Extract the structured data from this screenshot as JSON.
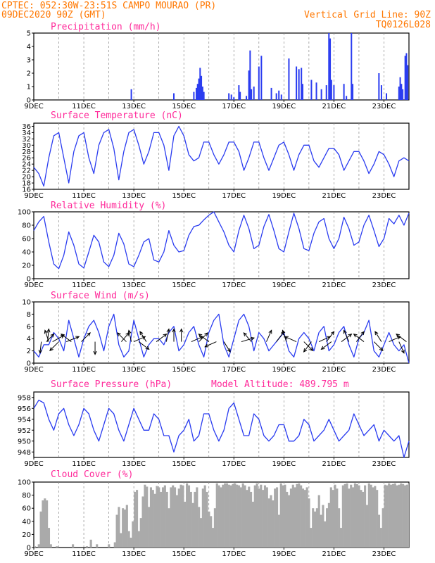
{
  "header": {
    "line1_left": "CPTEC:  052:30W-23:51S  CAMPO MOURAO (PR)",
    "line2_left": "09DEC2020 90Z (GMT)",
    "line2_right": "Vertical Grid Line: 90Z",
    "line3_right": "TQ0126L028"
  },
  "colors": {
    "header": "#ff7700",
    "title": "#ff2a9a",
    "series": "#2a3cf0",
    "cloud": "#aaaaaa"
  },
  "x_axis": {
    "start": "09DEC",
    "end": "24DEC",
    "ticks": [
      "9DEC",
      "11DEC",
      "13DEC",
      "15DEC",
      "17DEC",
      "19DEC",
      "21DEC",
      "23DEC"
    ],
    "tick_days": [
      9,
      11,
      13,
      15,
      17,
      19,
      21,
      23
    ],
    "grid_days": [
      10,
      11,
      12,
      13,
      14,
      15,
      16,
      17,
      18,
      19,
      20,
      21,
      22,
      23
    ]
  },
  "chart_data": [
    {
      "id": "precipitation",
      "type": "bar",
      "title": "Precipitation (mm/h)",
      "ylim": [
        0,
        5
      ],
      "yticks": [
        0,
        1,
        2,
        3,
        4,
        5
      ],
      "bars": [
        [
          12.9,
          0.8
        ],
        [
          14.6,
          0.5
        ],
        [
          15.4,
          0.6
        ],
        [
          15.5,
          0.9
        ],
        [
          15.55,
          1.2
        ],
        [
          15.6,
          1.6
        ],
        [
          15.65,
          2.4
        ],
        [
          15.7,
          1.8
        ],
        [
          15.75,
          1.0
        ],
        [
          15.8,
          0.6
        ],
        [
          16.8,
          0.5
        ],
        [
          16.9,
          0.4
        ],
        [
          17.0,
          0.2
        ],
        [
          17.2,
          1.1
        ],
        [
          17.25,
          0.6
        ],
        [
          17.5,
          0.3
        ],
        [
          17.6,
          2.2
        ],
        [
          17.65,
          3.7
        ],
        [
          17.7,
          0.8
        ],
        [
          17.8,
          1.0
        ],
        [
          18.0,
          2.5
        ],
        [
          18.1,
          3.3
        ],
        [
          18.5,
          0.9
        ],
        [
          18.7,
          0.5
        ],
        [
          18.8,
          0.7
        ],
        [
          18.9,
          0.4
        ],
        [
          19.2,
          3.1
        ],
        [
          19.5,
          2.5
        ],
        [
          19.6,
          2.3
        ],
        [
          19.7,
          2.4
        ],
        [
          19.75,
          1.2
        ],
        [
          20.1,
          1.5
        ],
        [
          20.3,
          1.3
        ],
        [
          20.5,
          0.8
        ],
        [
          20.7,
          1.1
        ],
        [
          20.8,
          5.0
        ],
        [
          20.85,
          4.6
        ],
        [
          20.9,
          1.5
        ],
        [
          21.0,
          1.1
        ],
        [
          21.4,
          1.2
        ],
        [
          21.5,
          0.3
        ],
        [
          21.7,
          5.0
        ],
        [
          21.75,
          1.2
        ],
        [
          22.8,
          2.0
        ],
        [
          22.9,
          1.1
        ],
        [
          23.1,
          0.5
        ],
        [
          23.6,
          1.0
        ],
        [
          23.65,
          1.7
        ],
        [
          23.7,
          1.2
        ],
        [
          23.75,
          0.8
        ],
        [
          23.85,
          3.3
        ],
        [
          23.9,
          3.5
        ],
        [
          23.95,
          2.6
        ]
      ]
    },
    {
      "id": "temperature",
      "type": "line",
      "title": "Surface Temperature (nC)",
      "ylim": [
        16,
        37
      ],
      "yticks": [
        16,
        18,
        20,
        22,
        24,
        26,
        28,
        30,
        32,
        34,
        36
      ],
      "x": [
        9.0,
        9.2,
        9.4,
        9.6,
        9.8,
        10.0,
        10.2,
        10.4,
        10.6,
        10.8,
        11.0,
        11.2,
        11.4,
        11.6,
        11.8,
        12.0,
        12.2,
        12.4,
        12.6,
        12.8,
        13.0,
        13.2,
        13.4,
        13.6,
        13.8,
        14.0,
        14.2,
        14.4,
        14.6,
        14.8,
        15.0,
        15.2,
        15.4,
        15.6,
        15.8,
        16.0,
        16.2,
        16.4,
        16.6,
        16.8,
        17.0,
        17.2,
        17.4,
        17.6,
        17.8,
        18.0,
        18.2,
        18.4,
        18.6,
        18.8,
        19.0,
        19.2,
        19.4,
        19.6,
        19.8,
        20.0,
        20.2,
        20.4,
        20.6,
        20.8,
        21.0,
        21.2,
        21.4,
        21.6,
        21.8,
        22.0,
        22.2,
        22.4,
        22.6,
        22.8,
        23.0,
        23.2,
        23.4,
        23.6,
        23.8,
        24.0
      ],
      "values": [
        23,
        21,
        17,
        26,
        33,
        34,
        26,
        18,
        28,
        33,
        34,
        26,
        21,
        30,
        34,
        35,
        29,
        19,
        28,
        34,
        35,
        30,
        24,
        28,
        34,
        34,
        30,
        22,
        33,
        36,
        33,
        27,
        25,
        26,
        31,
        31,
        27,
        24,
        27,
        31,
        31,
        28,
        22,
        26,
        31,
        31,
        26,
        22,
        26,
        30,
        31,
        27,
        22,
        27,
        30,
        30,
        25,
        23,
        26,
        29,
        29,
        27,
        22,
        25,
        28,
        28,
        25,
        21,
        24,
        28,
        27,
        24,
        20,
        25,
        26,
        25
      ]
    },
    {
      "id": "humidity",
      "type": "line",
      "title": "Relative Humidity (%)",
      "ylim": [
        0,
        100
      ],
      "yticks": [
        0,
        20,
        40,
        60,
        80,
        100
      ],
      "x": [
        9.0,
        9.2,
        9.4,
        9.6,
        9.8,
        10.0,
        10.2,
        10.4,
        10.6,
        10.8,
        11.0,
        11.2,
        11.4,
        11.6,
        11.8,
        12.0,
        12.2,
        12.4,
        12.6,
        12.8,
        13.0,
        13.2,
        13.4,
        13.6,
        13.8,
        14.0,
        14.2,
        14.4,
        14.6,
        14.8,
        15.0,
        15.2,
        15.4,
        15.6,
        15.8,
        16.0,
        16.2,
        16.4,
        16.6,
        16.8,
        17.0,
        17.2,
        17.4,
        17.6,
        17.8,
        18.0,
        18.2,
        18.4,
        18.6,
        18.8,
        19.0,
        19.2,
        19.4,
        19.6,
        19.8,
        20.0,
        20.2,
        20.4,
        20.6,
        20.8,
        21.0,
        21.2,
        21.4,
        21.6,
        21.8,
        22.0,
        22.2,
        22.4,
        22.6,
        22.8,
        23.0,
        23.2,
        23.4,
        23.6,
        23.8,
        24.0
      ],
      "values": [
        72,
        85,
        93,
        55,
        22,
        15,
        35,
        70,
        50,
        22,
        16,
        40,
        65,
        55,
        25,
        18,
        35,
        68,
        52,
        22,
        18,
        35,
        55,
        60,
        28,
        25,
        40,
        72,
        50,
        40,
        42,
        65,
        78,
        80,
        88,
        95,
        100,
        85,
        70,
        50,
        40,
        72,
        95,
        75,
        45,
        50,
        78,
        96,
        72,
        45,
        40,
        70,
        98,
        75,
        45,
        42,
        68,
        85,
        90,
        60,
        45,
        60,
        92,
        75,
        50,
        55,
        80,
        95,
        72,
        48,
        60,
        90,
        82,
        95,
        80,
        98
      ]
    },
    {
      "id": "wind",
      "type": "line",
      "title": "Surface Wind (m/s)",
      "ylim": [
        0,
        10
      ],
      "yticks": [
        0,
        2,
        4,
        6,
        8,
        10
      ],
      "x": [
        9.0,
        9.2,
        9.4,
        9.6,
        9.8,
        10.0,
        10.2,
        10.4,
        10.6,
        10.8,
        11.0,
        11.2,
        11.4,
        11.6,
        11.8,
        12.0,
        12.2,
        12.4,
        12.6,
        12.8,
        13.0,
        13.2,
        13.4,
        13.6,
        13.8,
        14.0,
        14.2,
        14.4,
        14.6,
        14.8,
        15.0,
        15.2,
        15.4,
        15.6,
        15.8,
        16.0,
        16.2,
        16.4,
        16.6,
        16.8,
        17.0,
        17.2,
        17.4,
        17.6,
        17.8,
        18.0,
        18.2,
        18.4,
        18.6,
        18.8,
        19.0,
        19.2,
        19.4,
        19.6,
        19.8,
        20.0,
        20.2,
        20.4,
        20.6,
        20.8,
        21.0,
        21.2,
        21.4,
        21.6,
        21.8,
        22.0,
        22.2,
        22.4,
        22.6,
        22.8,
        23.0,
        23.2,
        23.4,
        23.6,
        23.8,
        24.0
      ],
      "values": [
        2,
        1,
        3,
        3,
        5,
        4,
        2,
        7,
        4,
        1,
        4,
        6,
        7,
        5,
        2,
        6,
        8,
        3,
        1,
        2,
        7,
        4,
        1,
        3,
        4,
        4,
        3,
        5,
        6,
        2,
        3,
        5,
        6,
        3,
        1,
        5,
        7,
        8,
        3,
        1,
        4,
        7,
        8,
        6,
        2,
        5,
        4,
        2,
        3,
        4,
        5,
        2,
        1,
        4,
        5,
        4,
        2,
        5,
        6,
        2,
        3,
        5,
        6,
        3,
        1,
        4,
        5,
        7,
        2,
        1,
        3,
        5,
        3,
        2,
        3,
        0
      ],
      "arrows": [
        [
          9.3,
          -0.1,
          -0.9
        ],
        [
          9.5,
          0.6,
          0.6
        ],
        [
          9.55,
          0.1,
          1.0
        ],
        [
          9.6,
          -0.3,
          0.9
        ],
        [
          9.75,
          0.9,
          0.5
        ],
        [
          10.0,
          -0.7,
          -0.7
        ],
        [
          10.3,
          1.0,
          0.4
        ],
        [
          10.5,
          -0.8,
          0.6
        ],
        [
          10.9,
          0.7,
          0.7
        ],
        [
          11.45,
          0.0,
          -1.0
        ],
        [
          12.5,
          0.6,
          0.7
        ],
        [
          12.7,
          -0.7,
          0.7
        ],
        [
          12.9,
          -0.2,
          0.9
        ],
        [
          13.0,
          0.9,
          0.4
        ],
        [
          13.2,
          0.8,
          -0.6
        ],
        [
          13.5,
          -0.5,
          0.8
        ],
        [
          13.9,
          0.8,
          0.6
        ],
        [
          14.3,
          0.2,
          1.0
        ],
        [
          14.6,
          0.0,
          1.0
        ],
        [
          14.9,
          0.0,
          1.0
        ],
        [
          15.3,
          0.9,
          0.4
        ],
        [
          15.6,
          0.7,
          0.7
        ],
        [
          16.0,
          -0.8,
          0.6
        ],
        [
          16.3,
          -0.9,
          -0.4
        ],
        [
          16.6,
          0.5,
          -0.8
        ],
        [
          17.3,
          1.0,
          0.3
        ],
        [
          17.7,
          -0.6,
          0.7
        ],
        [
          18.3,
          0.4,
          0.9
        ],
        [
          18.7,
          0.6,
          0.8
        ],
        [
          19.1,
          -0.3,
          0.9
        ],
        [
          19.5,
          -0.9,
          0.4
        ],
        [
          19.8,
          0.7,
          -0.7
        ],
        [
          20.1,
          -0.6,
          -0.8
        ],
        [
          20.4,
          0.9,
          0.4
        ],
        [
          20.7,
          0.6,
          0.8
        ],
        [
          20.9,
          -0.8,
          -0.6
        ],
        [
          21.3,
          0.8,
          0.6
        ],
        [
          21.6,
          -0.4,
          0.9
        ],
        [
          21.9,
          0.6,
          0.8
        ],
        [
          22.2,
          -0.8,
          0.6
        ],
        [
          22.6,
          0.7,
          -0.7
        ],
        [
          22.9,
          -0.5,
          0.8
        ],
        [
          23.2,
          0.9,
          0.4
        ],
        [
          23.6,
          0.4,
          -0.9
        ],
        [
          23.9,
          -0.8,
          0.6
        ]
      ]
    },
    {
      "id": "pressure",
      "type": "line",
      "title": "Surface Pressure (hPa)",
      "annotation": "Model Altitude: 489.795 m",
      "ylim": [
        947,
        959
      ],
      "yticks": [
        948,
        950,
        952,
        954,
        956,
        958
      ],
      "x": [
        9.0,
        9.2,
        9.4,
        9.6,
        9.8,
        10.0,
        10.2,
        10.4,
        10.6,
        10.8,
        11.0,
        11.2,
        11.4,
        11.6,
        11.8,
        12.0,
        12.2,
        12.4,
        12.6,
        12.8,
        13.0,
        13.2,
        13.4,
        13.6,
        13.8,
        14.0,
        14.2,
        14.4,
        14.6,
        14.8,
        15.0,
        15.2,
        15.4,
        15.6,
        15.8,
        16.0,
        16.2,
        16.4,
        16.6,
        16.8,
        17.0,
        17.2,
        17.4,
        17.6,
        17.8,
        18.0,
        18.2,
        18.4,
        18.6,
        18.8,
        19.0,
        19.2,
        19.4,
        19.6,
        19.8,
        20.0,
        20.2,
        20.4,
        20.6,
        20.8,
        21.0,
        21.2,
        21.4,
        21.6,
        21.8,
        22.0,
        22.2,
        22.4,
        22.6,
        22.8,
        23.0,
        23.2,
        23.4,
        23.6,
        23.8,
        24.0
      ],
      "values": [
        956,
        957.5,
        957,
        954,
        952,
        955,
        956,
        953,
        951,
        953,
        956,
        955,
        952,
        950,
        953,
        956,
        955,
        952,
        950,
        953,
        956,
        954,
        952,
        952,
        955,
        954,
        951,
        951,
        948,
        951,
        952,
        954,
        950,
        951,
        955,
        955,
        952,
        950,
        952,
        956,
        957,
        954,
        951,
        951,
        955,
        954,
        951,
        950,
        951,
        953,
        953,
        950,
        950,
        951,
        954,
        953,
        950,
        951,
        952,
        954,
        952,
        950,
        951,
        952,
        955,
        953,
        951,
        952,
        953,
        950,
        952,
        951,
        950,
        951,
        947,
        950
      ]
    },
    {
      "id": "cloud",
      "type": "bar",
      "title": "Cloud Cover (%)",
      "ylim": [
        0,
        100
      ],
      "yticks": [
        0,
        20,
        40,
        60,
        80,
        100
      ],
      "x_start": 9.0,
      "x_step": 0.08,
      "values": [
        2,
        0,
        5,
        55,
        72,
        75,
        72,
        30,
        5,
        0,
        0,
        2,
        0,
        0,
        0,
        0,
        0,
        0,
        0,
        5,
        0,
        0,
        0,
        0,
        0,
        0,
        2,
        0,
        12,
        0,
        0,
        5,
        0,
        0,
        0,
        0,
        0,
        5,
        0,
        0,
        8,
        50,
        62,
        22,
        60,
        58,
        65,
        25,
        15,
        40,
        85,
        88,
        25,
        45,
        78,
        96,
        93,
        62,
        92,
        88,
        82,
        94,
        92,
        85,
        92,
        95,
        85,
        60,
        92,
        95,
        92,
        80,
        90,
        96,
        95,
        70,
        98,
        95,
        85,
        68,
        85,
        92,
        62,
        45,
        90,
        95,
        85,
        55,
        48,
        30,
        60,
        98,
        95,
        92,
        96,
        98,
        98,
        96,
        95,
        97,
        98,
        96,
        95,
        92,
        98,
        95,
        88,
        93,
        85,
        70,
        95,
        98,
        90,
        96,
        88,
        95,
        92,
        75,
        80,
        72,
        90,
        92,
        50,
        98,
        95,
        96,
        85,
        80,
        90,
        96,
        92,
        97,
        98,
        95,
        90,
        88,
        92,
        75,
        30,
        60,
        55,
        60,
        80,
        50,
        65,
        40,
        60,
        68,
        92,
        88,
        96,
        90,
        60,
        30,
        95,
        97,
        98,
        90,
        96,
        92,
        98,
        97,
        95,
        88,
        85,
        95,
        65,
        98,
        96,
        92,
        94,
        88,
        50,
        30,
        60,
        96,
        95,
        98,
        96,
        97,
        98,
        95,
        96,
        98,
        97,
        95,
        96,
        98,
        97,
        98,
        97,
        96,
        95,
        98,
        97,
        96,
        98,
        97,
        95,
        96,
        98,
        97,
        98,
        97
      ]
    }
  ]
}
